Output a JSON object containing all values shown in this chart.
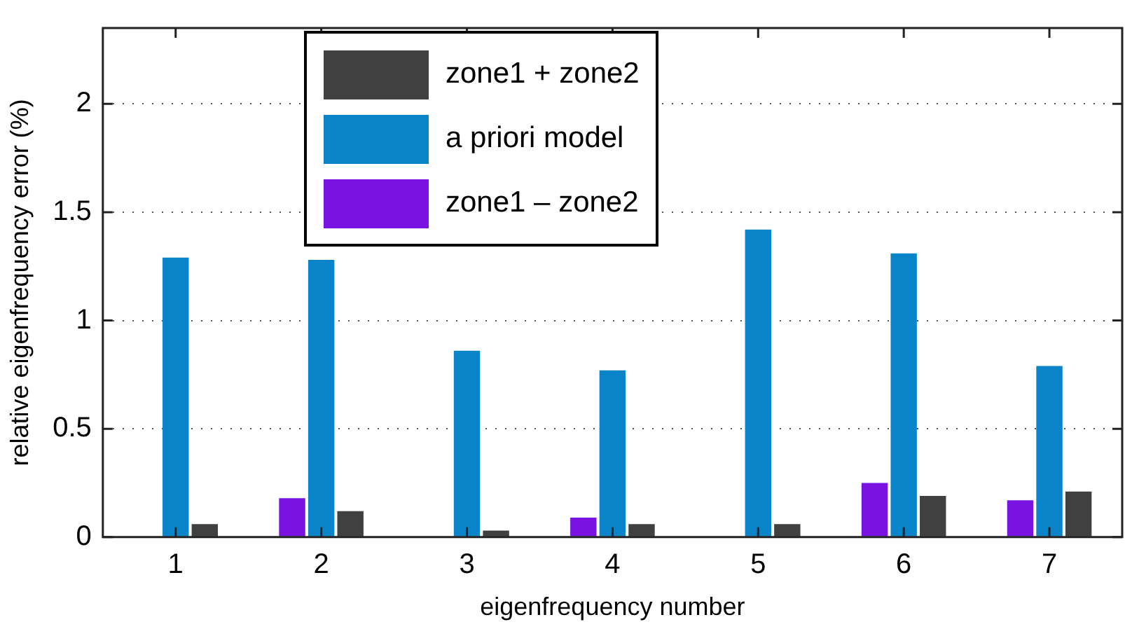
{
  "chart_data": {
    "type": "bar",
    "xlabel": "eigenfrequency number",
    "ylabel": "relative eigenfrequency error (%)",
    "categories": [
      "1",
      "2",
      "3",
      "4",
      "5",
      "6",
      "7"
    ],
    "series": [
      {
        "name": "zone1 – zone2",
        "color": "#7a12e2",
        "values": [
          0,
          0.18,
          0,
          0.09,
          0,
          0.25,
          0.17
        ]
      },
      {
        "name": "a priori model",
        "color": "#0a84c8",
        "values": [
          1.29,
          1.28,
          0.86,
          0.77,
          1.42,
          1.31,
          0.79
        ]
      },
      {
        "name": "zone1 + zone2",
        "color": "#404040",
        "values": [
          0.06,
          0.12,
          0.03,
          0.06,
          0.06,
          0.19,
          0.21
        ]
      }
    ],
    "ylim": [
      0,
      2.35
    ],
    "yticks": [
      0,
      0.5,
      1,
      1.5,
      2
    ],
    "grid": "y",
    "legend": "top"
  }
}
